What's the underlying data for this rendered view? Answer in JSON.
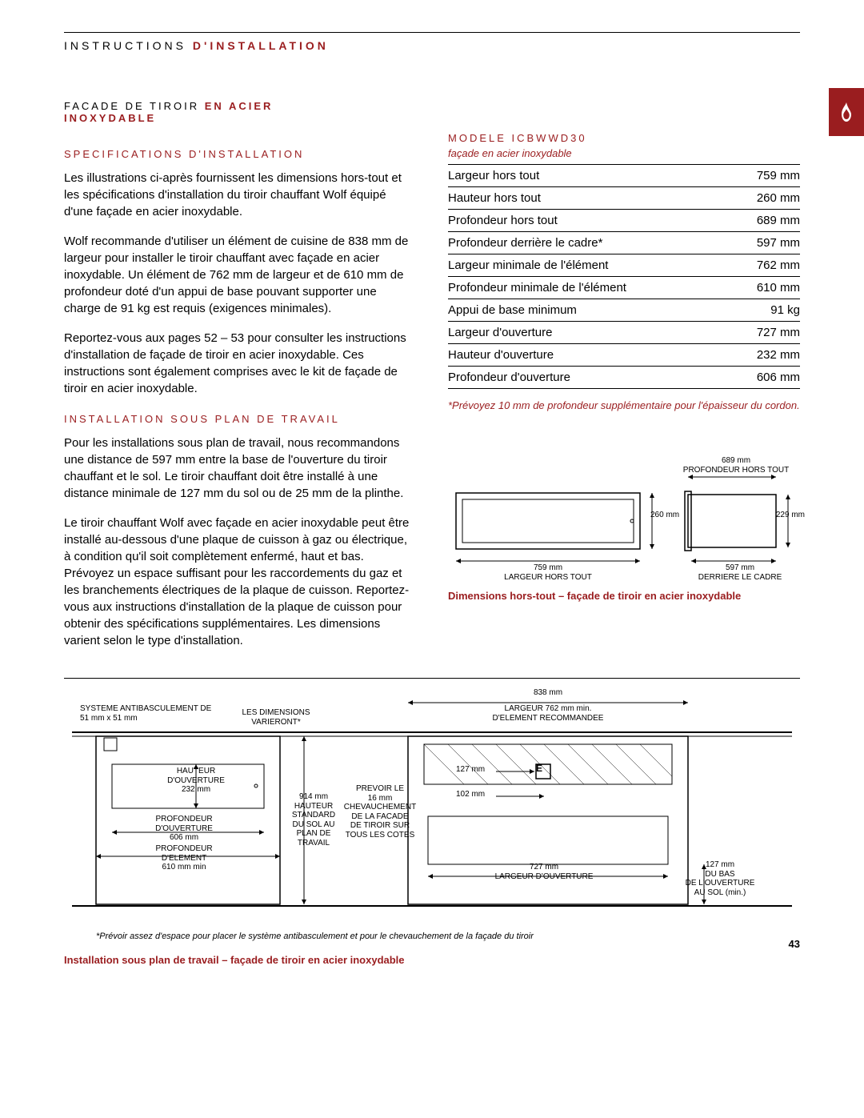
{
  "header": {
    "left": "INSTRUCTIONS",
    "right": "D'INSTALLATION"
  },
  "section_title": {
    "line1_black": "FACADE DE TIROIR",
    "line1_red": "EN ACIER",
    "line2_red": "INOXYDABLE"
  },
  "left_col": {
    "h1": "SPECIFICATIONS D'INSTALLATION",
    "p1": "Les illustrations ci-après fournissent les dimensions hors-tout et les spécifications d'installation du tiroir chauffant Wolf équipé d'une façade en acier inoxydable.",
    "p2": "Wolf recommande d'utiliser un élément de cuisine de 838 mm de largeur pour installer le tiroir chauffant avec façade en acier inoxydable. Un élément de 762 mm de largeur et de 610 mm de profondeur doté d'un appui de base pouvant supporter une charge de 91 kg est requis (exigences minimales).",
    "p3": "Reportez-vous aux pages 52 – 53 pour consulter les instructions d'installation de façade de tiroir en acier inoxydable. Ces instructions sont également comprises avec le kit de façade de tiroir en acier inoxydable.",
    "h2": "INSTALLATION SOUS PLAN DE TRAVAIL",
    "p4": "Pour les installations sous plan de travail, nous recommandons une distance de 597 mm entre la base de l'ouverture du tiroir chauffant et le sol. Le tiroir chauffant doit être installé à une distance minimale de 127 mm du sol ou de 25 mm de la plinthe.",
    "p5": "Le tiroir chauffant Wolf avec façade en acier inoxydable peut être installé au-dessous d'une plaque de cuisson à gaz ou électrique, à condition qu'il soit complètement enfermé, haut et bas. Prévoyez un espace suffisant pour les raccordements du gaz et les branchements électriques de la plaque de cuisson. Reportez-vous aux instructions d'installation de la plaque de cuisson pour obtenir des spécifications supplémentaires. Les dimensions varient selon le type d'installation."
  },
  "spec_table": {
    "model": "MODELE ICBWWD30",
    "subtitle": "façade en acier inoxydable",
    "rows": [
      {
        "label": "Largeur hors tout",
        "value": "759 mm"
      },
      {
        "label": "Hauteur hors tout",
        "value": "260 mm"
      },
      {
        "label": "Profondeur hors tout",
        "value": "689 mm"
      },
      {
        "label": "Profondeur derrière le cadre*",
        "value": "597 mm"
      },
      {
        "label": "Largeur minimale de l'élément",
        "value": "762 mm"
      },
      {
        "label": "Profondeur minimale de l'élément",
        "value": "610 mm"
      },
      {
        "label": "Appui de base minimum",
        "value": "91 kg"
      },
      {
        "label": "Largeur d'ouverture",
        "value": "727 mm"
      },
      {
        "label": "Hauteur d'ouverture",
        "value": "232 mm"
      },
      {
        "label": "Profondeur d'ouverture",
        "value": "606 mm"
      }
    ],
    "footnote": "*Prévoyez 10 mm de profondeur supplémentaire pour l'épaisseur du cordon."
  },
  "small_diagram": {
    "caption": "Dimensions hors-tout – façade de tiroir en acier inoxydable",
    "labels": {
      "top_right": "689 mm\nPROFONDEUR HORS TOUT",
      "left_h": "260 mm",
      "right_h": "229 mm",
      "bottom_left": "759 mm\nLARGEUR HORS TOUT",
      "bottom_right": "597 mm\nDERRIERE LE CADRE"
    }
  },
  "big_diagram": {
    "top_center_1": "838 mm",
    "top_center_2": "LARGEUR 762 mm min.\nD'ELEMENT RECOMMANDEE",
    "antibas": "SYSTEME ANTIBASCULEMENT DE\n51 mm x 51 mm",
    "dims_var": "LES DIMENSIONS\nVARIERONT*",
    "haut_ouv": "HAUTEUR\nD'OUVERTURE\n232 mm",
    "prof_ouv": "PROFONDEUR\nD'OUVERTURE\n606 mm",
    "prof_elem": "PROFONDEUR\nD'ELEMENT\n610 mm min",
    "h914": "914 mm\nHAUTEUR\nSTANDARD\nDU SOL AU\nPLAN DE\nTRAVAIL",
    "prevoir": "PREVOIR LE\n16 mm\nCHEVAUCHEMENT\nDE LA FACADE\nDE TIROIR SUR\nTOUS LES COTES",
    "e_label": "E",
    "d127": "127 mm",
    "d102": "102 mm",
    "d727": "727 mm\nLARGEUR D'OUVERTURE",
    "d127_bas": "127 mm\nDU BAS\nDE L'OUVERTURE\nAU SOL (min.)",
    "bottom_note": "*Prévoir assez d'espace pour placer le système antibasculement et pour le chevauchement de la façade du tiroir",
    "caption": "Installation sous plan de travail – façade de tiroir en acier inoxydable"
  },
  "page_number": "43",
  "colors": {
    "red": "#9a1d1f",
    "black": "#000000"
  }
}
